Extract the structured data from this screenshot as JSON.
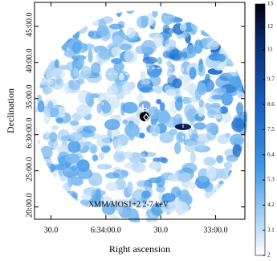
{
  "chart_data": {
    "type": "image",
    "annotation": "XMM/MOS1+2 2-7 keV",
    "xlabel": "Right ascension",
    "ylabel": "Declination",
    "xlim": [
      23679,
      23564
    ],
    "xticks": [
      {
        "value": 23670,
        "label": "30.0"
      },
      {
        "value": 23640,
        "label": "6:34:00.0"
      },
      {
        "value": 23610,
        "label": "30.0"
      },
      {
        "value": 23580,
        "label": "33:00.0"
      }
    ],
    "ylim": [
      378.3,
      408.3
    ],
    "yticks": [
      {
        "value": 405,
        "label": "45:00.0"
      },
      {
        "value": 400,
        "label": "40:00.0"
      },
      {
        "value": 395,
        "label": "35:00.0"
      },
      {
        "value": 390,
        "label": "6:30:00.0"
      },
      {
        "value": 385,
        "label": "25:00.0"
      },
      {
        "value": 380,
        "label": "20:00.0"
      }
    ],
    "clim": [
      2,
      13
    ],
    "cticks": [
      13,
      12,
      11,
      9.7,
      8.6,
      7.5,
      6.4,
      5.3,
      4.2,
      3.1,
      2
    ]
  }
}
